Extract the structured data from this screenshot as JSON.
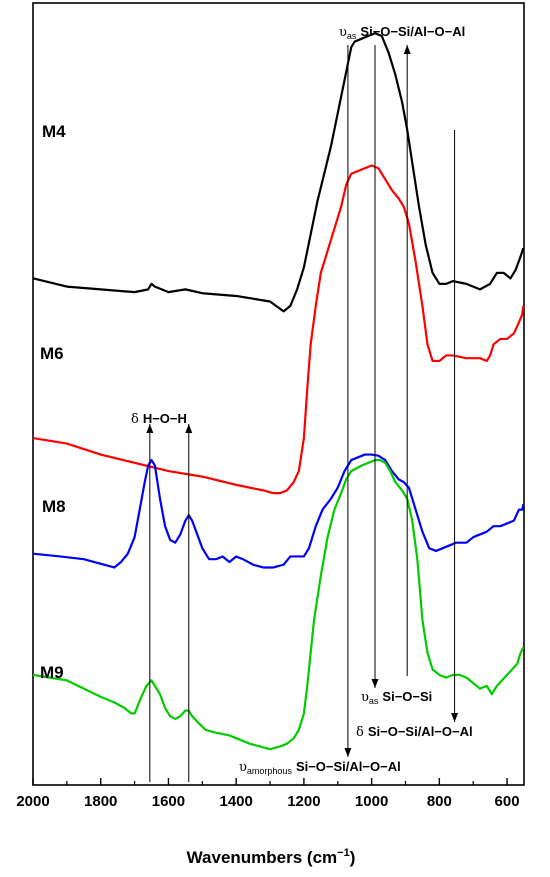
{
  "chart_data": {
    "type": "line",
    "xlabel_main": "Wavenumbers (cm",
    "xlabel_sup": "−1",
    "xlabel_end": ")",
    "xlim": [
      2000,
      550
    ],
    "xticks": [
      {
        "value": 2000,
        "label": "2000"
      },
      {
        "value": 1800,
        "label": "1800"
      },
      {
        "value": 1600,
        "label": "1600"
      },
      {
        "value": 1400,
        "label": "1400"
      },
      {
        "value": 1200,
        "label": "1200"
      },
      {
        "value": 1000,
        "label": "1000"
      },
      {
        "value": 800,
        "label": "800"
      },
      {
        "value": 600,
        "label": "600"
      }
    ],
    "series": [
      {
        "name": "M4",
        "color": "#000000",
        "points": [
          [
            2000,
            0.92
          ],
          [
            1900,
            0.905
          ],
          [
            1800,
            0.9
          ],
          [
            1700,
            0.895
          ],
          [
            1660,
            0.9
          ],
          [
            1650,
            0.91
          ],
          [
            1640,
            0.905
          ],
          [
            1600,
            0.895
          ],
          [
            1550,
            0.9
          ],
          [
            1500,
            0.893
          ],
          [
            1400,
            0.888
          ],
          [
            1300,
            0.878
          ],
          [
            1260,
            0.86
          ],
          [
            1240,
            0.87
          ],
          [
            1220,
            0.9
          ],
          [
            1200,
            0.94
          ],
          [
            1180,
            1.0
          ],
          [
            1160,
            1.06
          ],
          [
            1140,
            1.11
          ],
          [
            1120,
            1.16
          ],
          [
            1100,
            1.22
          ],
          [
            1080,
            1.28
          ],
          [
            1070,
            1.31
          ],
          [
            1060,
            1.34
          ],
          [
            1050,
            1.35
          ],
          [
            1030,
            1.355
          ],
          [
            1010,
            1.36
          ],
          [
            990,
            1.365
          ],
          [
            970,
            1.36
          ],
          [
            950,
            1.33
          ],
          [
            930,
            1.29
          ],
          [
            910,
            1.24
          ],
          [
            895,
            1.19
          ],
          [
            880,
            1.13
          ],
          [
            860,
            1.05
          ],
          [
            840,
            0.98
          ],
          [
            820,
            0.93
          ],
          [
            800,
            0.91
          ],
          [
            780,
            0.91
          ],
          [
            760,
            0.915
          ],
          [
            720,
            0.91
          ],
          [
            680,
            0.9
          ],
          [
            650,
            0.91
          ],
          [
            630,
            0.93
          ],
          [
            610,
            0.93
          ],
          [
            590,
            0.92
          ],
          [
            575,
            0.935
          ],
          [
            560,
            0.96
          ],
          [
            552,
            0.975
          ]
        ]
      },
      {
        "name": "M6",
        "color": "#ff0000",
        "points": [
          [
            2000,
            0.63
          ],
          [
            1900,
            0.62
          ],
          [
            1800,
            0.6
          ],
          [
            1700,
            0.585
          ],
          [
            1600,
            0.57
          ],
          [
            1500,
            0.56
          ],
          [
            1400,
            0.545
          ],
          [
            1320,
            0.535
          ],
          [
            1290,
            0.53
          ],
          [
            1270,
            0.53
          ],
          [
            1250,
            0.535
          ],
          [
            1230,
            0.55
          ],
          [
            1215,
            0.57
          ],
          [
            1200,
            0.63
          ],
          [
            1190,
            0.72
          ],
          [
            1180,
            0.8
          ],
          [
            1165,
            0.87
          ],
          [
            1150,
            0.93
          ],
          [
            1130,
            0.97
          ],
          [
            1110,
            1.01
          ],
          [
            1090,
            1.05
          ],
          [
            1075,
            1.09
          ],
          [
            1060,
            1.11
          ],
          [
            1040,
            1.115
          ],
          [
            1020,
            1.12
          ],
          [
            1000,
            1.125
          ],
          [
            980,
            1.12
          ],
          [
            960,
            1.1
          ],
          [
            940,
            1.08
          ],
          [
            920,
            1.065
          ],
          [
            905,
            1.05
          ],
          [
            890,
            1.02
          ],
          [
            870,
            0.95
          ],
          [
            850,
            0.87
          ],
          [
            835,
            0.8
          ],
          [
            820,
            0.77
          ],
          [
            800,
            0.77
          ],
          [
            780,
            0.78
          ],
          [
            760,
            0.78
          ],
          [
            720,
            0.775
          ],
          [
            680,
            0.775
          ],
          [
            660,
            0.77
          ],
          [
            650,
            0.78
          ],
          [
            640,
            0.8
          ],
          [
            620,
            0.81
          ],
          [
            600,
            0.81
          ],
          [
            580,
            0.82
          ],
          [
            565,
            0.84
          ],
          [
            555,
            0.855
          ],
          [
            552,
            0.87
          ]
        ]
      },
      {
        "name": "M8",
        "color": "#0000ff",
        "points": [
          [
            2000,
            0.42
          ],
          [
            1920,
            0.415
          ],
          [
            1850,
            0.41
          ],
          [
            1790,
            0.4
          ],
          [
            1760,
            0.395
          ],
          [
            1740,
            0.405
          ],
          [
            1720,
            0.42
          ],
          [
            1700,
            0.45
          ],
          [
            1685,
            0.5
          ],
          [
            1670,
            0.55
          ],
          [
            1660,
            0.58
          ],
          [
            1650,
            0.59
          ],
          [
            1640,
            0.58
          ],
          [
            1625,
            0.52
          ],
          [
            1610,
            0.47
          ],
          [
            1595,
            0.445
          ],
          [
            1580,
            0.44
          ],
          [
            1565,
            0.455
          ],
          [
            1550,
            0.48
          ],
          [
            1540,
            0.49
          ],
          [
            1530,
            0.48
          ],
          [
            1515,
            0.455
          ],
          [
            1500,
            0.43
          ],
          [
            1480,
            0.41
          ],
          [
            1460,
            0.41
          ],
          [
            1440,
            0.415
          ],
          [
            1420,
            0.405
          ],
          [
            1400,
            0.415
          ],
          [
            1380,
            0.41
          ],
          [
            1350,
            0.4
          ],
          [
            1320,
            0.395
          ],
          [
            1290,
            0.395
          ],
          [
            1260,
            0.4
          ],
          [
            1240,
            0.415
          ],
          [
            1220,
            0.415
          ],
          [
            1200,
            0.415
          ],
          [
            1185,
            0.43
          ],
          [
            1165,
            0.47
          ],
          [
            1145,
            0.5
          ],
          [
            1120,
            0.52
          ],
          [
            1100,
            0.54
          ],
          [
            1080,
            0.57
          ],
          [
            1060,
            0.59
          ],
          [
            1040,
            0.595
          ],
          [
            1020,
            0.6
          ],
          [
            1000,
            0.6
          ],
          [
            980,
            0.598
          ],
          [
            960,
            0.59
          ],
          [
            940,
            0.57
          ],
          [
            920,
            0.555
          ],
          [
            905,
            0.55
          ],
          [
            890,
            0.54
          ],
          [
            870,
            0.5
          ],
          [
            850,
            0.46
          ],
          [
            830,
            0.43
          ],
          [
            810,
            0.425
          ],
          [
            790,
            0.43
          ],
          [
            770,
            0.435
          ],
          [
            750,
            0.44
          ],
          [
            720,
            0.44
          ],
          [
            700,
            0.45
          ],
          [
            680,
            0.455
          ],
          [
            660,
            0.46
          ],
          [
            640,
            0.47
          ],
          [
            620,
            0.47
          ],
          [
            600,
            0.475
          ],
          [
            580,
            0.48
          ],
          [
            565,
            0.5
          ],
          [
            555,
            0.5
          ],
          [
            552,
            0.51
          ]
        ]
      },
      {
        "name": "M9",
        "color": "#00cc00",
        "points": [
          [
            2000,
            0.2
          ],
          [
            1950,
            0.195
          ],
          [
            1900,
            0.19
          ],
          [
            1850,
            0.175
          ],
          [
            1800,
            0.16
          ],
          [
            1760,
            0.15
          ],
          [
            1730,
            0.14
          ],
          [
            1710,
            0.13
          ],
          [
            1700,
            0.13
          ],
          [
            1690,
            0.145
          ],
          [
            1680,
            0.16
          ],
          [
            1665,
            0.18
          ],
          [
            1650,
            0.19
          ],
          [
            1640,
            0.18
          ],
          [
            1625,
            0.165
          ],
          [
            1610,
            0.14
          ],
          [
            1595,
            0.125
          ],
          [
            1580,
            0.12
          ],
          [
            1565,
            0.125
          ],
          [
            1550,
            0.135
          ],
          [
            1540,
            0.135
          ],
          [
            1530,
            0.125
          ],
          [
            1515,
            0.115
          ],
          [
            1490,
            0.1
          ],
          [
            1460,
            0.095
          ],
          [
            1420,
            0.09
          ],
          [
            1400,
            0.085
          ],
          [
            1360,
            0.075
          ],
          [
            1330,
            0.07
          ],
          [
            1300,
            0.065
          ],
          [
            1270,
            0.07
          ],
          [
            1250,
            0.075
          ],
          [
            1230,
            0.085
          ],
          [
            1215,
            0.1
          ],
          [
            1200,
            0.13
          ],
          [
            1190,
            0.18
          ],
          [
            1180,
            0.24
          ],
          [
            1170,
            0.3
          ],
          [
            1150,
            0.38
          ],
          [
            1130,
            0.45
          ],
          [
            1110,
            0.5
          ],
          [
            1090,
            0.53
          ],
          [
            1075,
            0.555
          ],
          [
            1060,
            0.57
          ],
          [
            1045,
            0.575
          ],
          [
            1030,
            0.58
          ],
          [
            1010,
            0.585
          ],
          [
            990,
            0.59
          ],
          [
            975,
            0.59
          ],
          [
            960,
            0.585
          ],
          [
            945,
            0.57
          ],
          [
            930,
            0.55
          ],
          [
            910,
            0.535
          ],
          [
            895,
            0.52
          ],
          [
            880,
            0.48
          ],
          [
            865,
            0.41
          ],
          [
            850,
            0.3
          ],
          [
            835,
            0.24
          ],
          [
            820,
            0.21
          ],
          [
            800,
            0.2
          ],
          [
            780,
            0.195
          ],
          [
            760,
            0.2
          ],
          [
            740,
            0.2
          ],
          [
            720,
            0.195
          ],
          [
            700,
            0.185
          ],
          [
            680,
            0.175
          ],
          [
            660,
            0.18
          ],
          [
            645,
            0.165
          ],
          [
            630,
            0.18
          ],
          [
            615,
            0.19
          ],
          [
            600,
            0.2
          ],
          [
            585,
            0.21
          ],
          [
            570,
            0.22
          ],
          [
            560,
            0.24
          ],
          [
            552,
            0.25
          ]
        ]
      }
    ],
    "annotations": {
      "vas_top": {
        "sym": "υ",
        "sub": "as",
        "text": "Si−O−Si/Al−O−Al"
      },
      "delta_hoh": {
        "sym": "δ",
        "text": "H−O−H"
      },
      "vas_sisi": {
        "sym": "υ",
        "sub": "as",
        "text": "Si−O−Si"
      },
      "delta_si": {
        "sym": "δ",
        "text": "Si−O−Si/Al−O−Al"
      },
      "amorphous": {
        "sym": "υ",
        "sub": "amorphous",
        "text": "Si−O−Si/Al−O−Al"
      }
    }
  }
}
